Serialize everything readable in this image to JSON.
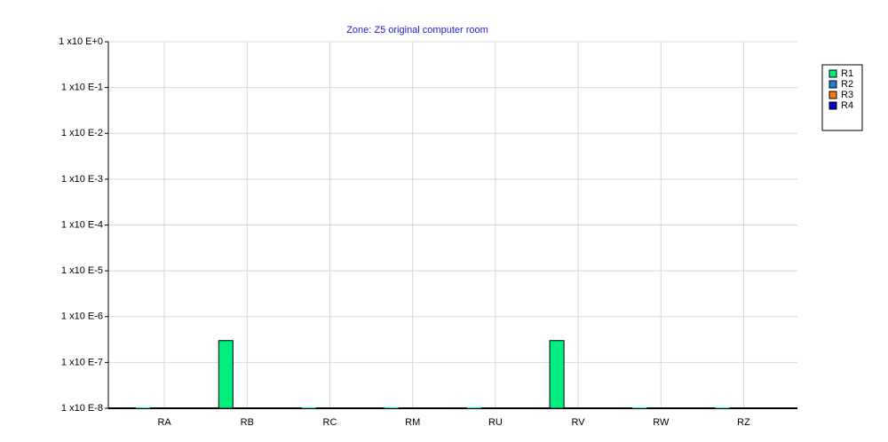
{
  "chart_data": {
    "type": "bar",
    "title": "Zone: Z5 original computer room",
    "categories": [
      "RA",
      "RB",
      "RC",
      "RM",
      "RU",
      "RV",
      "RW",
      "RZ"
    ],
    "series": [
      {
        "name": "R1",
        "color": "#00ee80",
        "values": [
          1e-08,
          3e-07,
          1e-08,
          1e-08,
          1e-08,
          3e-07,
          1e-08,
          1e-08
        ]
      },
      {
        "name": "R2",
        "color": "#1e7fd6",
        "values": [
          null,
          null,
          null,
          null,
          null,
          null,
          null,
          null
        ]
      },
      {
        "name": "R3",
        "color": "#f07f0e",
        "values": [
          null,
          null,
          null,
          null,
          null,
          null,
          null,
          null
        ]
      },
      {
        "name": "R4",
        "color": "#0000cc",
        "values": [
          null,
          null,
          null,
          null,
          null,
          null,
          null,
          null
        ]
      }
    ],
    "ylim": [
      1e-08,
      1
    ],
    "yticks": [
      {
        "value": 1,
        "label": "1 x10 E+0"
      },
      {
        "value": 0.1,
        "label": "1 x10 E-1"
      },
      {
        "value": 0.01,
        "label": "1 x10 E-2"
      },
      {
        "value": 0.001,
        "label": "1 x10 E-3"
      },
      {
        "value": 0.0001,
        "label": "1 x10 E-4"
      },
      {
        "value": 1e-05,
        "label": "1 x10 E-5"
      },
      {
        "value": 1e-06,
        "label": "1 x10 E-6"
      },
      {
        "value": 1e-07,
        "label": "1 x10 E-7"
      },
      {
        "value": 1e-08,
        "label": "1 x10 E-8"
      }
    ],
    "log_scale": true,
    "grid": true,
    "legend": "right"
  }
}
